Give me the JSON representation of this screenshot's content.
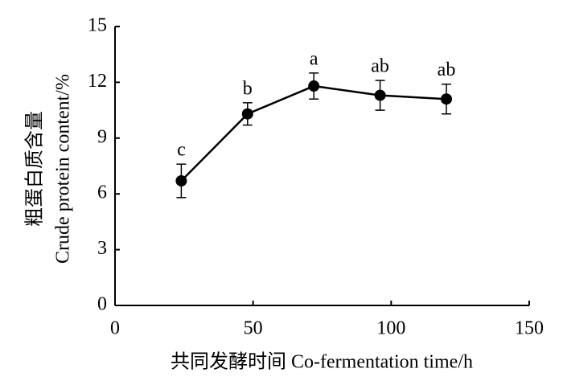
{
  "chart_data": {
    "type": "line",
    "xlabel": "共同发酵时间  Co-fermentation time/h",
    "ylabel": [
      "粗蛋白质含量",
      "Crude protein content/%"
    ],
    "x": [
      24,
      48,
      72,
      96,
      120
    ],
    "series": [
      {
        "color": "#000000",
        "values": [
          6.7,
          10.3,
          11.8,
          11.3,
          11.1
        ],
        "errors": [
          0.9,
          0.6,
          0.7,
          0.8,
          0.8
        ],
        "labels": [
          "c",
          "b",
          "a",
          "ab",
          "ab"
        ]
      }
    ],
    "xlim": [
      0,
      150
    ],
    "xticks": [
      0,
      50,
      100,
      150
    ],
    "ylim": [
      0,
      15
    ],
    "yticks": [
      0,
      3,
      6,
      9,
      12,
      15
    ]
  }
}
